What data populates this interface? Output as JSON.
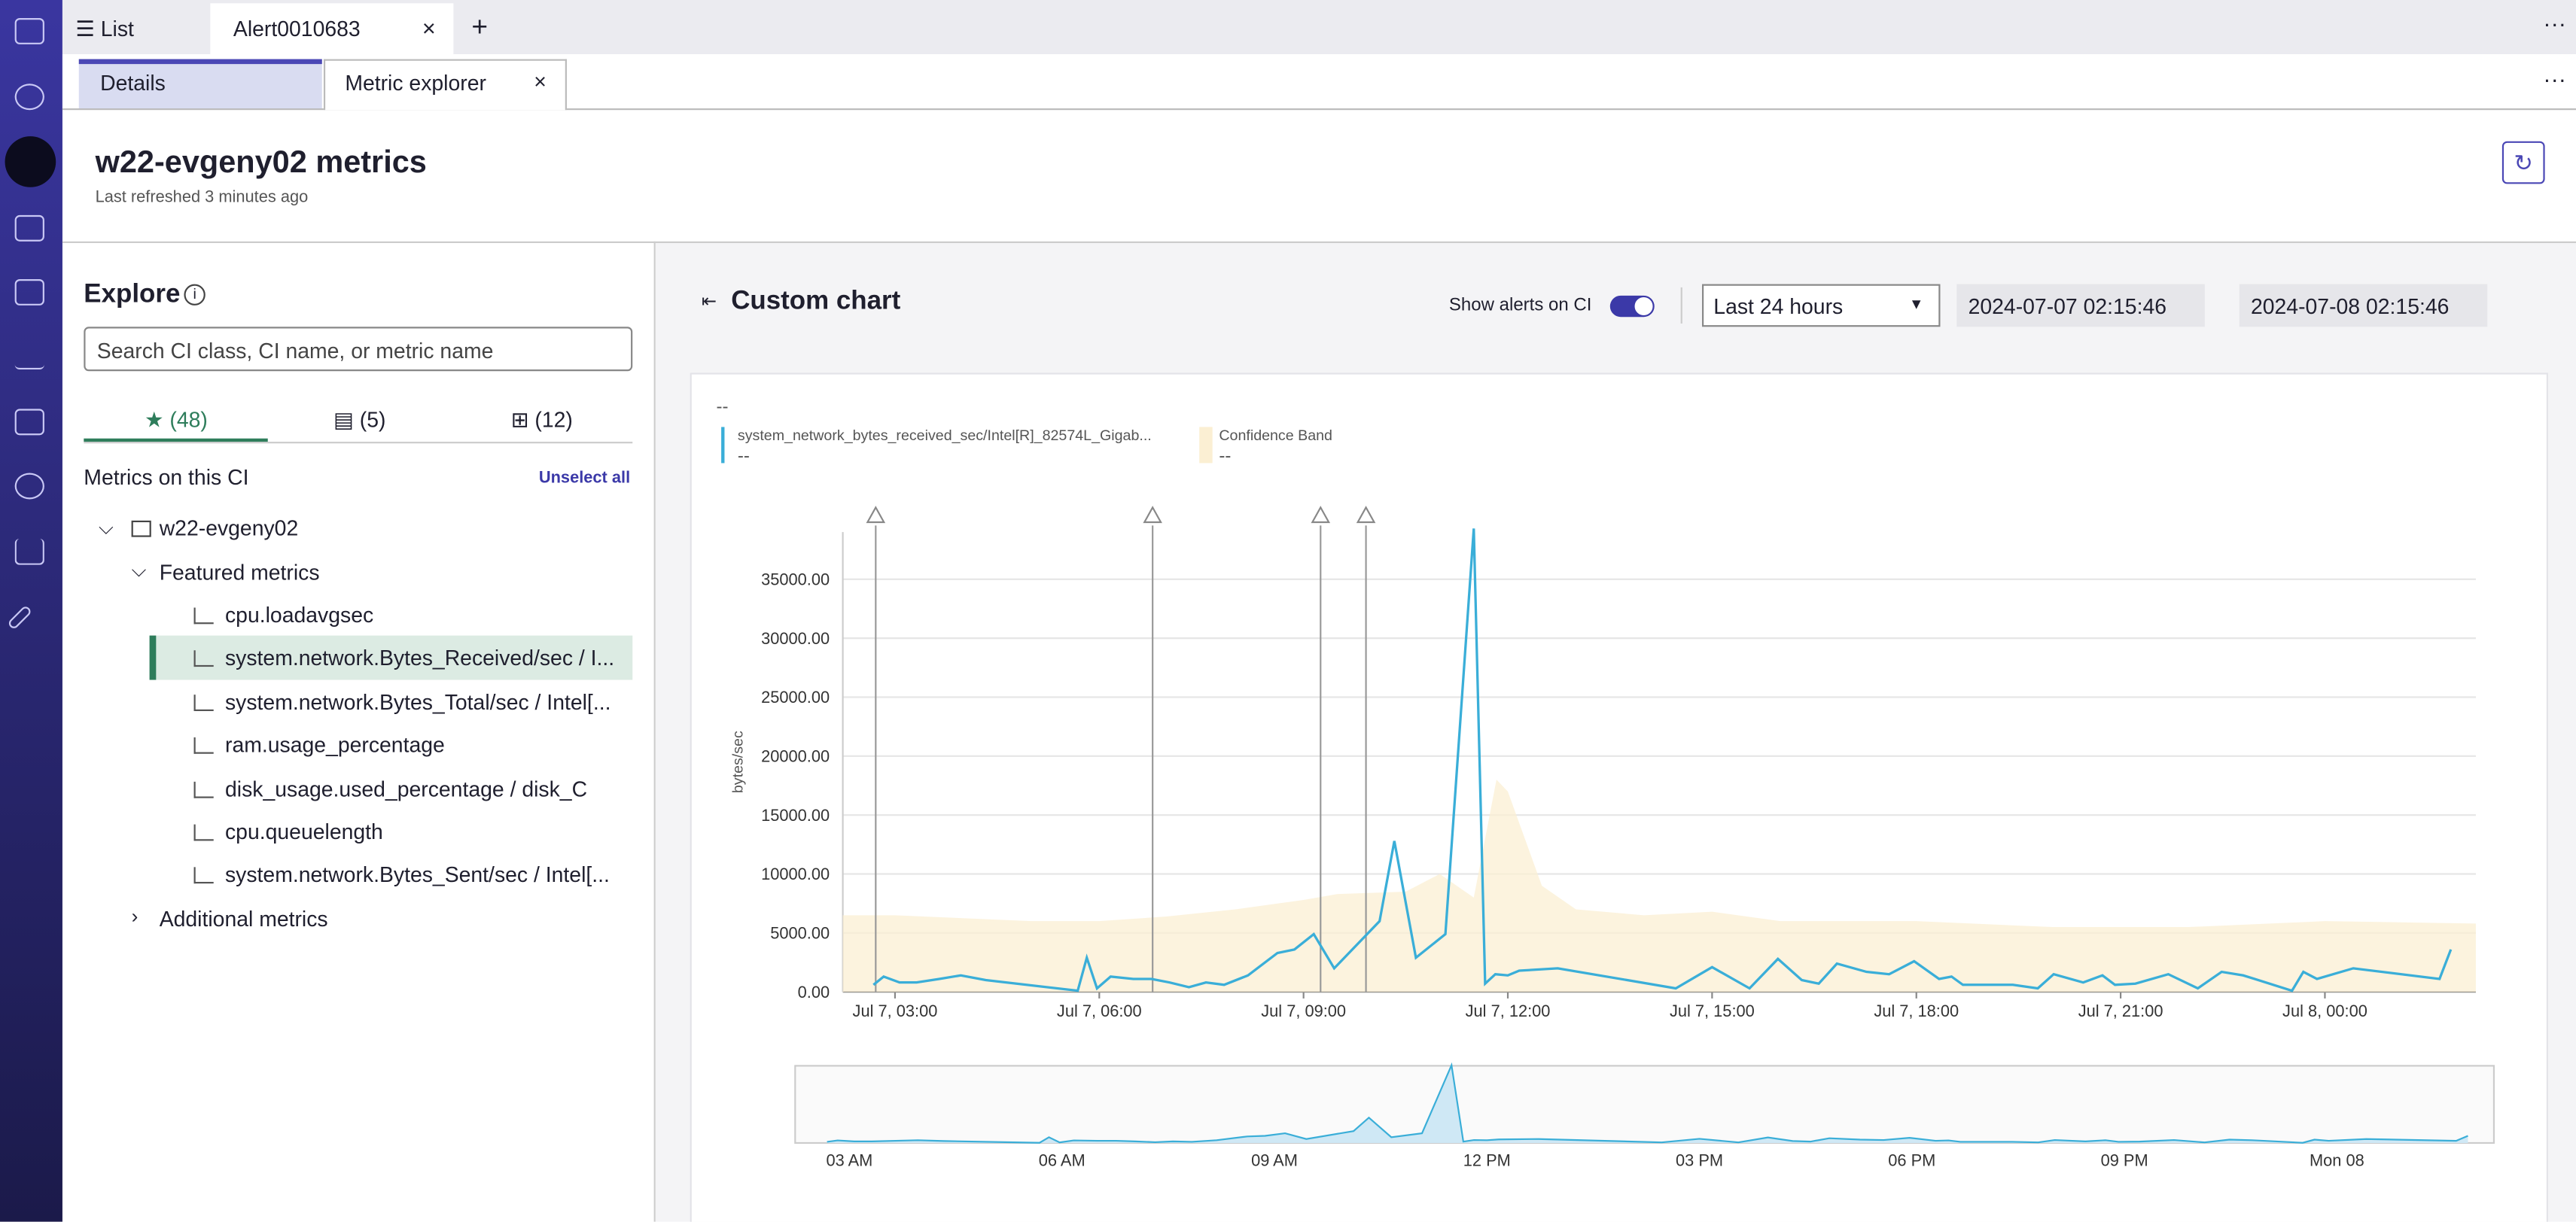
{
  "tabs": {
    "list": "List",
    "active": "Alert0010683"
  },
  "subtabs": [
    "Details",
    "Metric explorer"
  ],
  "header": {
    "title": "w22-evgeny02 metrics",
    "subtitle": "Last refreshed 3 minutes ago"
  },
  "explore": {
    "title": "Explore",
    "search_placeholder": "Search CI class, CI name, or metric name",
    "tabs": [
      "(48)",
      "(5)",
      "(12)"
    ],
    "section": "Metrics on this CI",
    "unselect": "Unselect all",
    "ci": "w22-evgeny02",
    "group": "Featured metrics",
    "metrics": [
      "cpu.loadavgsec",
      "system.network.Bytes_Received/sec / I...",
      "system.network.Bytes_Total/sec / Intel[...",
      "ram.usage_percentage",
      "disk_usage.used_percentage / disk_C",
      "cpu.queuelength",
      "system.network.Bytes_Sent/sec / Intel[..."
    ],
    "more": "Additional metrics"
  },
  "controls": {
    "title": "Custom chart",
    "toggle_label": "Show alerts on CI",
    "range": "Last 24 hours",
    "start": "2024-07-07 02:15:46",
    "end": "2024-07-08 02:15:46"
  },
  "chart_data": {
    "type": "line",
    "top_label": "--",
    "y_label": "bytes/sec",
    "grid": true,
    "xlim": [
      "Jul 7, 02:14",
      "Jul 8, 02:13"
    ],
    "xticks": [
      "Jul 7, 03:00",
      "Jul 7, 06:00",
      "Jul 7, 09:00",
      "Jul 7, 12:00",
      "Jul 7, 15:00",
      "Jul 7, 18:00",
      "Jul 7, 21:00",
      "Jul 8, 00:00"
    ],
    "ylim": [
      0,
      39000
    ],
    "yticks": [
      {
        "value": 0,
        "label": "0.00"
      },
      {
        "value": 5000,
        "label": "5000.00"
      },
      {
        "value": 10000,
        "label": "10000.00"
      },
      {
        "value": 15000,
        "label": "15000.00"
      },
      {
        "value": 20000,
        "label": "20000.00"
      },
      {
        "value": 25000,
        "label": "25000.00"
      },
      {
        "value": 30000,
        "label": "30000.00"
      },
      {
        "value": 35000,
        "label": "35000.00"
      }
    ],
    "series": [
      {
        "name": "system_network_bytes_received_sec/Intel[R]_82574L_Gigab...",
        "legend_value": "--",
        "color": "#3aaed8",
        "x": [
          "Jul 7, 02:41",
          "Jul 7, 02:50",
          "Jul 7, 03:04",
          "Jul 7, 03:19",
          "Jul 7, 03:39",
          "Jul 7, 03:58",
          "Jul 7, 04:20",
          "Jul 7, 05:41",
          "Jul 7, 05:49",
          "Jul 7, 05:58",
          "Jul 7, 06:10",
          "Jul 7, 06:30",
          "Jul 7, 06:46",
          "Jul 7, 07:02",
          "Jul 7, 07:19",
          "Jul 7, 07:34",
          "Jul 7, 07:50",
          "Jul 7, 08:11",
          "Jul 7, 08:37",
          "Jul 7, 08:52",
          "Jul 7, 09:09",
          "Jul 7, 09:27",
          "Jul 7, 10:07",
          "Jul 7, 10:20",
          "Jul 7, 10:39",
          "Jul 7, 11:05",
          "Jul 7, 11:30",
          "Jul 7, 11:40",
          "Jul 7, 11:49",
          "Jul 7, 12:00",
          "Jul 7, 12:10",
          "Jul 7, 12:44",
          "Jul 7, 14:28",
          "Jul 7, 15:00",
          "Jul 7, 15:33",
          "Jul 7, 15:58",
          "Jul 7, 16:19",
          "Jul 7, 16:34",
          "Jul 7, 16:50",
          "Jul 7, 17:16",
          "Jul 7, 17:36",
          "Jul 7, 17:58",
          "Jul 7, 18:20",
          "Jul 7, 18:31",
          "Jul 7, 18:41",
          "Jul 7, 19:25",
          "Jul 7, 19:47",
          "Jul 7, 20:01",
          "Jul 7, 20:27",
          "Jul 7, 20:44",
          "Jul 7, 20:55",
          "Jul 7, 21:13",
          "Jul 7, 21:42",
          "Jul 7, 22:08",
          "Jul 7, 22:29",
          "Jul 7, 22:48",
          "Jul 7, 22:58",
          "Jul 7, 23:31",
          "Jul 7, 23:41",
          "Jul 7, 23:53",
          "Jul 8, 00:25",
          "Jul 8, 01:41",
          "Jul 8, 01:51"
        ],
        "values": [
          600,
          1300,
          800,
          800,
          1100,
          1400,
          1000,
          100,
          2900,
          300,
          1300,
          1100,
          1100,
          800,
          400,
          800,
          600,
          1400,
          3300,
          3600,
          4900,
          2000,
          6000,
          12800,
          2900,
          4900,
          39300,
          700,
          1500,
          1400,
          1800,
          2000,
          300,
          2100,
          300,
          2800,
          1000,
          700,
          2400,
          1700,
          1500,
          2600,
          1100,
          1300,
          600,
          600,
          300,
          1500,
          800,
          1400,
          600,
          700,
          1500,
          300,
          1700,
          1400,
          1100,
          100,
          1700,
          1100,
          2000,
          1100,
          3600
        ]
      }
    ],
    "band": {
      "name": "Confidence Band",
      "legend_value": "--",
      "color": "#fbefd3",
      "x": [
        "Jul 7, 02:14",
        "Jul 7, 03:00",
        "Jul 7, 05:00",
        "Jul 7, 06:00",
        "Jul 7, 07:00",
        "Jul 7, 08:00",
        "Jul 7, 09:00",
        "Jul 7, 09:30",
        "Jul 7, 10:30",
        "Jul 7, 11:00",
        "Jul 7, 11:30",
        "Jul 7, 11:50",
        "Jul 7, 12:00",
        "Jul 7, 12:30",
        "Jul 7, 13:00",
        "Jul 7, 14:00",
        "Jul 7, 15:00",
        "Jul 7, 16:00",
        "Jul 7, 18:00",
        "Jul 7, 20:00",
        "Jul 7, 22:00",
        "Jul 8, 00:00",
        "Jul 8, 02:13"
      ],
      "values": [
        6500,
        6500,
        6000,
        6000,
        6400,
        7000,
        7800,
        8300,
        8500,
        10000,
        8000,
        18000,
        17000,
        9000,
        7000,
        6500,
        6800,
        6000,
        6000,
        5500,
        5500,
        6000,
        5800
      ]
    },
    "alerts": [
      "Jul 7, 02:43",
      "Jul 7, 06:47",
      "Jul 7, 09:15",
      "Jul 7, 09:55"
    ],
    "navigator_ticks": [
      {
        "value": "Jul 7, 03:00",
        "label": "03 AM"
      },
      {
        "value": "Jul 7, 06:00",
        "label": "06 AM"
      },
      {
        "value": "Jul 7, 09:00",
        "label": "09 AM"
      },
      {
        "value": "Jul 7, 12:00",
        "label": "12 PM"
      },
      {
        "value": "Jul 7, 15:00",
        "label": "03 PM"
      },
      {
        "value": "Jul 7, 18:00",
        "label": "06 PM"
      },
      {
        "value": "Jul 7, 21:00",
        "label": "09 PM"
      },
      {
        "value": "Jul 8, 00:00",
        "label": "Mon 08"
      }
    ]
  }
}
